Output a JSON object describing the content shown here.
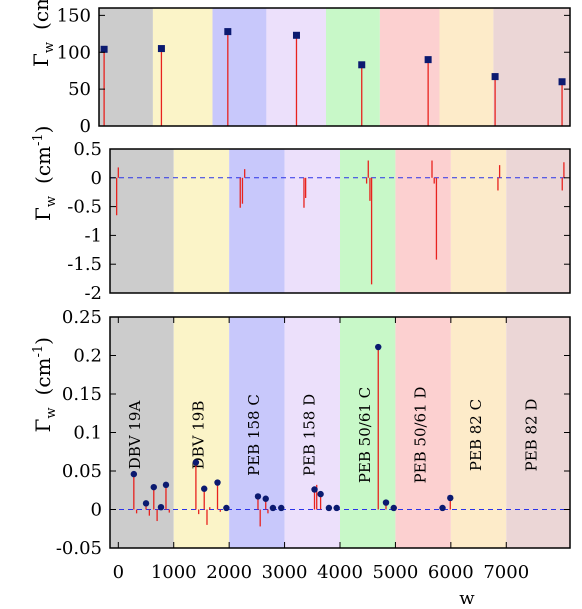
{
  "chart_data": [
    {
      "type": "line",
      "panel": "top",
      "xlim": [
        -150,
        8150
      ],
      "ylim": [
        0,
        160
      ],
      "yticks": [
        0,
        50,
        100,
        150
      ],
      "ylabel_main": "Γ",
      "ylabel_sub": "w",
      "ylabel_unit": "(cm",
      "ylabel_exp": "-1",
      "ylabel_close": ")",
      "bands": [
        {
          "x0": -150,
          "x1": 800,
          "color": "#cccccc"
        },
        {
          "x0": 800,
          "x1": 1850,
          "color": "#fbf4c8"
        },
        {
          "x0": 1850,
          "x1": 2800,
          "color": "#c8c8fb"
        },
        {
          "x0": 2800,
          "x1": 3850,
          "color": "#ece0fb"
        },
        {
          "x0": 3850,
          "x1": 4800,
          "color": "#c8f8c8"
        },
        {
          "x0": 4800,
          "x1": 5850,
          "color": "#fcd0d0"
        },
        {
          "x0": 5850,
          "x1": 6800,
          "color": "#fdebc9"
        },
        {
          "x0": 6800,
          "x1": 8150,
          "color": "#ebd6d6"
        }
      ],
      "spikes": [
        {
          "x": -60,
          "y": 105,
          "y0": 0
        },
        {
          "x": 950,
          "y": 105,
          "y0": 0
        },
        {
          "x": 2120,
          "y": 128,
          "y0": 0
        },
        {
          "x": 3330,
          "y": 123,
          "y0": 0
        },
        {
          "x": 4480,
          "y": 84,
          "y0": 0
        },
        {
          "x": 5650,
          "y": 90,
          "y0": 0
        },
        {
          "x": 6830,
          "y": 67,
          "y0": 0
        },
        {
          "x": 8010,
          "y": 60,
          "y0": 0
        }
      ],
      "markers": [
        {
          "x": -60,
          "y": 104
        },
        {
          "x": 950,
          "y": 105
        },
        {
          "x": 2120,
          "y": 128
        },
        {
          "x": 3330,
          "y": 123
        },
        {
          "x": 4480,
          "y": 83
        },
        {
          "x": 5650,
          "y": 90
        },
        {
          "x": 6830,
          "y": 67
        },
        {
          "x": 8010,
          "y": 60
        }
      ],
      "marker_shape": "square",
      "zero_line": false
    },
    {
      "type": "line",
      "panel": "middle",
      "xlim": [
        -150,
        8150
      ],
      "ylim": [
        -2,
        0.5
      ],
      "yticks": [
        0.5,
        0,
        -0.5,
        -1,
        -1.5,
        -2
      ],
      "ytick_labels": [
        "0.5",
        "0",
        "-0.5",
        "-1",
        "-1.5",
        "-2"
      ],
      "ylabel_main": "Γ",
      "ylabel_sub": "w",
      "ylabel_unit": "(cm",
      "ylabel_exp": "-1",
      "ylabel_close": ")",
      "bands": [
        {
          "x0": -150,
          "x1": 1000,
          "color": "#cccccc"
        },
        {
          "x0": 1000,
          "x1": 2000,
          "color": "#fbf4c8"
        },
        {
          "x0": 2000,
          "x1": 3000,
          "color": "#c8c8fb"
        },
        {
          "x0": 3000,
          "x1": 4000,
          "color": "#ece0fb"
        },
        {
          "x0": 4000,
          "x1": 5000,
          "color": "#c8f8c8"
        },
        {
          "x0": 5000,
          "x1": 6000,
          "color": "#fcd0d0"
        },
        {
          "x0": 6000,
          "x1": 7000,
          "color": "#fdebc9"
        },
        {
          "x0": 7000,
          "x1": 8150,
          "color": "#ebd6d6"
        }
      ],
      "spikes": [
        {
          "x": -30,
          "y": -0.65,
          "y0": 0
        },
        {
          "x": 0,
          "y": 0.18,
          "y0": 0
        },
        {
          "x": 2200,
          "y": -0.52,
          "y0": 0
        },
        {
          "x": 2240,
          "y": -0.45,
          "y0": 0
        },
        {
          "x": 2280,
          "y": 0.15,
          "y0": 0
        },
        {
          "x": 3350,
          "y": -0.52,
          "y0": 0
        },
        {
          "x": 3380,
          "y": -0.35,
          "y0": 0
        },
        {
          "x": 4480,
          "y": -0.1,
          "y0": 0
        },
        {
          "x": 4510,
          "y": 0.3,
          "y0": 0
        },
        {
          "x": 4540,
          "y": -0.4,
          "y0": 0
        },
        {
          "x": 4570,
          "y": -1.85,
          "y0": 0
        },
        {
          "x": 5660,
          "y": 0.3,
          "y0": 0
        },
        {
          "x": 5700,
          "y": -0.1,
          "y0": 0
        },
        {
          "x": 5740,
          "y": -1.42,
          "y0": 0
        },
        {
          "x": 6850,
          "y": -0.22,
          "y0": 0
        },
        {
          "x": 6880,
          "y": 0.22,
          "y0": 0
        },
        {
          "x": 8010,
          "y": -0.22,
          "y0": 0
        },
        {
          "x": 8040,
          "y": 0.27,
          "y0": 0
        }
      ],
      "markers": [],
      "zero_line": true
    },
    {
      "type": "line",
      "panel": "bottom",
      "xlim": [
        -150,
        8150
      ],
      "ylim": [
        -0.05,
        0.25
      ],
      "yticks": [
        0.25,
        0.2,
        0.15,
        0.1,
        0.05,
        0,
        -0.05
      ],
      "ytick_labels": [
        "0.25",
        "0.2",
        "0.15",
        "0.1",
        "0.05",
        "0",
        "-0.05"
      ],
      "xticks": [
        0,
        1000,
        2000,
        3000,
        4000,
        5000,
        6000,
        7000
      ],
      "xtick_labels": [
        "0",
        "1000",
        "2000",
        "3000",
        "4000",
        "5000",
        "6000",
        "7000"
      ],
      "xlabel": "w",
      "ylabel_main": "Γ",
      "ylabel_sub": "w",
      "ylabel_unit": "(cm",
      "ylabel_exp": "-1",
      "ylabel_close": ")",
      "bands": [
        {
          "x0": -150,
          "x1": 1000,
          "color": "#cccccc",
          "label": "DBV 19A"
        },
        {
          "x0": 1000,
          "x1": 2000,
          "color": "#fbf4c8",
          "label": "DBV 19B"
        },
        {
          "x0": 2000,
          "x1": 3000,
          "color": "#c8c8fb",
          "label": "PEB 158 C"
        },
        {
          "x0": 3000,
          "x1": 4000,
          "color": "#ece0fb",
          "label": "PEB 158 D"
        },
        {
          "x0": 4000,
          "x1": 5000,
          "color": "#c8f8c8",
          "label": "PEB 50/61 C"
        },
        {
          "x0": 5000,
          "x1": 6000,
          "color": "#fcd0d0",
          "label": "PEB 50/61 D"
        },
        {
          "x0": 6000,
          "x1": 7000,
          "color": "#fdebc9",
          "label": "PEB 82 C"
        },
        {
          "x0": 7000,
          "x1": 8150,
          "color": "#ebd6d6",
          "label": "PEB 82 D"
        }
      ],
      "spikes": [
        {
          "x": 280,
          "y": 0.046,
          "y0": 0
        },
        {
          "x": 330,
          "y": -0.005,
          "y0": 0
        },
        {
          "x": 500,
          "y": 0.008,
          "y0": 0
        },
        {
          "x": 560,
          "y": -0.008,
          "y0": 0
        },
        {
          "x": 640,
          "y": 0.029,
          "y0": 0
        },
        {
          "x": 700,
          "y": -0.015,
          "y0": 0
        },
        {
          "x": 770,
          "y": 0.003,
          "y0": 0
        },
        {
          "x": 860,
          "y": 0.032,
          "y0": 0
        },
        {
          "x": 920,
          "y": -0.004,
          "y0": 0
        },
        {
          "x": 1400,
          "y": 0.061,
          "y0": 0
        },
        {
          "x": 1450,
          "y": -0.006,
          "y0": 0
        },
        {
          "x": 1550,
          "y": 0.027,
          "y0": 0
        },
        {
          "x": 1600,
          "y": -0.02,
          "y0": 0
        },
        {
          "x": 1650,
          "y": 0.003,
          "y0": 0
        },
        {
          "x": 1790,
          "y": 0.035,
          "y0": 0
        },
        {
          "x": 1840,
          "y": -0.003,
          "y0": 0
        },
        {
          "x": 2520,
          "y": 0.017,
          "y0": 0
        },
        {
          "x": 2560,
          "y": -0.022,
          "y0": 0
        },
        {
          "x": 2660,
          "y": 0.014,
          "y0": 0
        },
        {
          "x": 2700,
          "y": -0.005,
          "y0": 0
        },
        {
          "x": 3540,
          "y": 0.026,
          "y0": 0
        },
        {
          "x": 3580,
          "y": 0.032,
          "y0": 0
        },
        {
          "x": 3650,
          "y": 0.02,
          "y0": 0
        },
        {
          "x": 4690,
          "y": 0.21,
          "y0": 0
        },
        {
          "x": 4830,
          "y": 0.009,
          "y0": 0
        },
        {
          "x": 5990,
          "y": 0.015,
          "y0": 0
        }
      ],
      "markers": [
        {
          "x": 280,
          "y": 0.046
        },
        {
          "x": 500,
          "y": 0.008
        },
        {
          "x": 640,
          "y": 0.029
        },
        {
          "x": 770,
          "y": 0.003
        },
        {
          "x": 860,
          "y": 0.032
        },
        {
          "x": 1400,
          "y": 0.061
        },
        {
          "x": 1550,
          "y": 0.027
        },
        {
          "x": 1790,
          "y": 0.035
        },
        {
          "x": 1950,
          "y": 0.002
        },
        {
          "x": 2520,
          "y": 0.017
        },
        {
          "x": 2660,
          "y": 0.014
        },
        {
          "x": 2790,
          "y": 0.002
        },
        {
          "x": 2940,
          "y": 0.002
        },
        {
          "x": 3540,
          "y": 0.026
        },
        {
          "x": 3650,
          "y": 0.02
        },
        {
          "x": 3800,
          "y": 0.002
        },
        {
          "x": 3940,
          "y": 0.002
        },
        {
          "x": 4690,
          "y": 0.211
        },
        {
          "x": 4830,
          "y": 0.009
        },
        {
          "x": 4970,
          "y": 0.002
        },
        {
          "x": 5850,
          "y": 0.002
        },
        {
          "x": 5990,
          "y": 0.015
        }
      ],
      "marker_shape": "circle",
      "zero_line": true
    }
  ],
  "colors": {
    "spike": "#e8221e",
    "marker": "#0b1a70",
    "zero_line": "#2b33e8",
    "axis": "#000000"
  }
}
